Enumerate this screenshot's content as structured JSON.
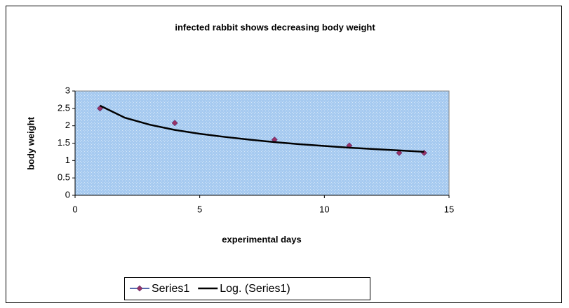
{
  "chart_data": {
    "type": "scatter",
    "title": "infected rabbit shows decreasing body weight",
    "x_label": "experimental days",
    "y_label": "body weight",
    "series": [
      {
        "name": "Series1",
        "color": "#993366",
        "mode": "markers",
        "x": [
          1,
          4,
          8,
          11,
          13,
          14
        ],
        "values": [
          2.5,
          2.08,
          1.6,
          1.43,
          1.22,
          1.22
        ]
      },
      {
        "name": "Log. (Series1)",
        "color": "#000000",
        "mode": "line",
        "x": [
          1,
          2,
          3,
          4,
          5,
          6,
          7,
          8,
          9,
          10,
          11,
          12,
          13,
          14
        ],
        "values": [
          2.58,
          2.23,
          2.03,
          1.88,
          1.77,
          1.68,
          1.6,
          1.53,
          1.47,
          1.42,
          1.37,
          1.33,
          1.29,
          1.25
        ]
      }
    ],
    "xlim": [
      0,
      15
    ],
    "xticks": [
      0,
      5,
      10,
      15
    ],
    "ylim": [
      0,
      3
    ],
    "yticks": [
      0,
      0.5,
      1,
      1.5,
      2,
      2.5,
      3
    ],
    "grid": false,
    "plot_background": "#a6caf0",
    "legend": "bottom"
  }
}
